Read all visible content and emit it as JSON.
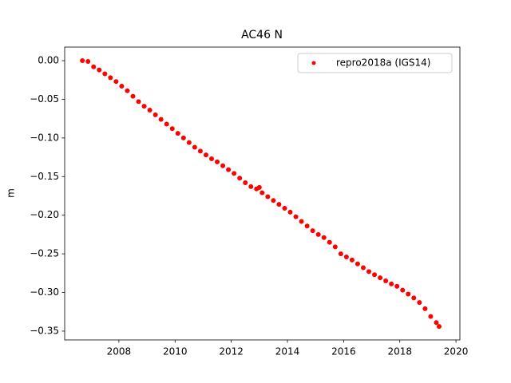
{
  "chart_data": {
    "type": "scatter",
    "title": "AC46 N",
    "ylabel": "m",
    "x": [
      2006.7,
      2006.9,
      2007.1,
      2007.3,
      2007.5,
      2007.7,
      2007.9,
      2008.1,
      2008.3,
      2008.5,
      2008.7,
      2008.9,
      2009.1,
      2009.3,
      2009.5,
      2009.7,
      2009.9,
      2010.1,
      2010.3,
      2010.5,
      2010.7,
      2010.9,
      2011.1,
      2011.3,
      2011.5,
      2011.7,
      2011.9,
      2012.1,
      2012.3,
      2012.5,
      2012.7,
      2012.9,
      2013.0,
      2013.1,
      2013.3,
      2013.5,
      2013.7,
      2013.9,
      2014.1,
      2014.3,
      2014.5,
      2014.7,
      2014.9,
      2015.1,
      2015.3,
      2015.5,
      2015.7,
      2015.9,
      2016.1,
      2016.3,
      2016.5,
      2016.7,
      2016.9,
      2017.1,
      2017.3,
      2017.5,
      2017.7,
      2017.9,
      2018.1,
      2018.3,
      2018.5,
      2018.7,
      2018.9,
      2019.1,
      2019.3,
      2019.4
    ],
    "series": [
      {
        "name": "repro2018a (IGS14)",
        "color": "#ff0000",
        "values": [
          0.0,
          -0.001,
          -0.008,
          -0.012,
          -0.017,
          -0.022,
          -0.027,
          -0.033,
          -0.039,
          -0.046,
          -0.053,
          -0.059,
          -0.064,
          -0.07,
          -0.076,
          -0.082,
          -0.088,
          -0.094,
          -0.1,
          -0.106,
          -0.112,
          -0.117,
          -0.122,
          -0.127,
          -0.131,
          -0.136,
          -0.141,
          -0.146,
          -0.152,
          -0.158,
          -0.163,
          -0.166,
          -0.164,
          -0.171,
          -0.176,
          -0.181,
          -0.186,
          -0.191,
          -0.196,
          -0.202,
          -0.208,
          -0.214,
          -0.22,
          -0.225,
          -0.229,
          -0.235,
          -0.241,
          -0.25,
          -0.254,
          -0.258,
          -0.263,
          -0.268,
          -0.273,
          -0.277,
          -0.281,
          -0.285,
          -0.289,
          -0.292,
          -0.297,
          -0.302,
          -0.307,
          -0.313,
          -0.321,
          -0.331,
          -0.339,
          -0.344
        ]
      }
    ],
    "xlim": [
      2006.07,
      2020.14
    ],
    "xticks": [
      2008,
      2010,
      2012,
      2014,
      2016,
      2018,
      2020
    ],
    "ylim": [
      -0.3614,
      0.0176
    ],
    "yticks": [
      {
        "value": 0,
        "label": "0.00"
      },
      {
        "value": -0.05,
        "label": "−0.05"
      },
      {
        "value": -0.1,
        "label": "−0.10"
      },
      {
        "value": -0.15,
        "label": "−0.15"
      },
      {
        "value": -0.2,
        "label": "−0.20"
      },
      {
        "value": -0.25,
        "label": "−0.25"
      },
      {
        "value": -0.3,
        "label": "−0.30"
      },
      {
        "value": -0.35,
        "label": "−0.35"
      }
    ],
    "grid": false,
    "legend": "upper right"
  }
}
